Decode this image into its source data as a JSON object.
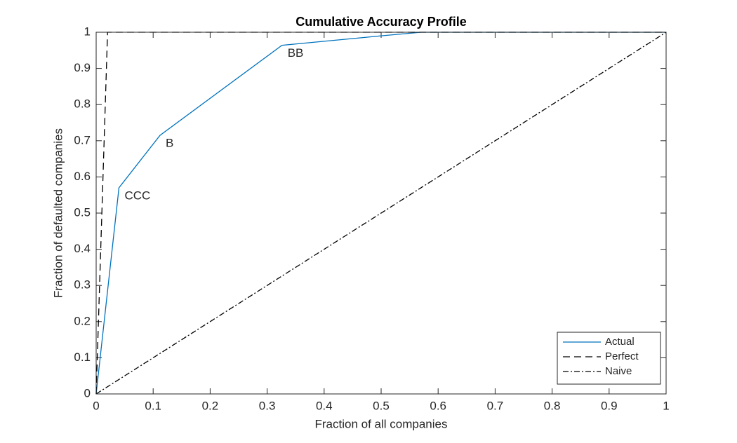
{
  "chart_data": {
    "type": "line",
    "title": "Cumulative Accuracy Profile",
    "xlabel": "Fraction of all companies",
    "ylabel": "Fraction of defaulted companies",
    "xlim": [
      0,
      1
    ],
    "ylim": [
      0,
      1
    ],
    "xticks": [
      0,
      0.1,
      0.2,
      0.3,
      0.4,
      0.5,
      0.6,
      0.7,
      0.8,
      0.9,
      1
    ],
    "yticks": [
      0,
      0.1,
      0.2,
      0.3,
      0.4,
      0.5,
      0.6,
      0.7,
      0.8,
      0.9,
      1
    ],
    "legend": "southeast",
    "series": [
      {
        "name": "Actual",
        "color": "#0072bd",
        "dash": "solid",
        "x": [
          0,
          0.04,
          0.112,
          0.326,
          0.5,
          0.57,
          1
        ],
        "values": [
          0,
          0.57,
          0.715,
          0.964,
          0.99,
          1,
          1
        ]
      },
      {
        "name": "Perfect",
        "color": "#000000",
        "dash": "dashed",
        "x": [
          0,
          0.02,
          1
        ],
        "values": [
          0,
          1,
          1
        ]
      },
      {
        "name": "Naive",
        "color": "#000000",
        "dash": "dashdot",
        "x": [
          0,
          1
        ],
        "values": [
          0,
          1
        ]
      }
    ],
    "annotations": [
      "CCC",
      "B",
      "BB"
    ]
  }
}
